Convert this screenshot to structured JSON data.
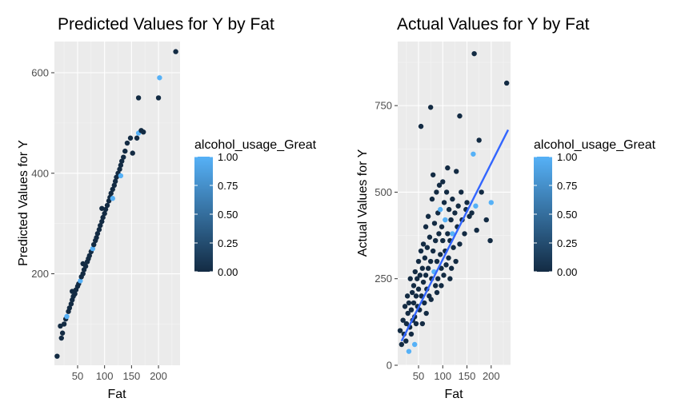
{
  "colors": {
    "panel_bg": "#ebebeb",
    "grid_major": "#ffffff",
    "grid_minor": "#f5f5f5",
    "fit_line": "#3366ff",
    "scale_low": "#132b43",
    "scale_high": "#56b1f7",
    "tick_text": "#4d4d4d"
  },
  "chart_data": [
    {
      "type": "scatter",
      "title": "Predicted Values for Y by Fat",
      "xlabel": "Fat",
      "ylabel": "Predicted Values for Y",
      "xlim": [
        7,
        240
      ],
      "ylim": [
        18,
        662
      ],
      "xticks": [
        50,
        100,
        150,
        200
      ],
      "yticks": [
        200,
        400,
        600
      ],
      "grid": true,
      "legend": {
        "title": "alcohol_usage_Great",
        "position": "right",
        "labels": [
          "1.00",
          "0.75",
          "0.50",
          "0.25",
          "0.00"
        ],
        "values": [
          1.0,
          0.75,
          0.5,
          0.25,
          0.0
        ]
      },
      "points": [
        {
          "x": 12,
          "y": 36,
          "c": 0
        },
        {
          "x": 20,
          "y": 72,
          "c": 0
        },
        {
          "x": 22,
          "y": 82,
          "c": 0
        },
        {
          "x": 18,
          "y": 96,
          "c": 0
        },
        {
          "x": 25,
          "y": 100,
          "c": 0
        },
        {
          "x": 28,
          "y": 110,
          "c": 0
        },
        {
          "x": 30,
          "y": 115,
          "c": 1
        },
        {
          "x": 33,
          "y": 125,
          "c": 0
        },
        {
          "x": 35,
          "y": 132,
          "c": 0
        },
        {
          "x": 38,
          "y": 140,
          "c": 0
        },
        {
          "x": 40,
          "y": 148,
          "c": 0
        },
        {
          "x": 42,
          "y": 155,
          "c": 0
        },
        {
          "x": 45,
          "y": 160,
          "c": 0
        },
        {
          "x": 47,
          "y": 168,
          "c": 0
        },
        {
          "x": 50,
          "y": 175,
          "c": 0
        },
        {
          "x": 52,
          "y": 180,
          "c": 0
        },
        {
          "x": 55,
          "y": 186,
          "c": 1
        },
        {
          "x": 57,
          "y": 194,
          "c": 0
        },
        {
          "x": 60,
          "y": 200,
          "c": 0
        },
        {
          "x": 62,
          "y": 208,
          "c": 0
        },
        {
          "x": 65,
          "y": 215,
          "c": 0
        },
        {
          "x": 68,
          "y": 224,
          "c": 0
        },
        {
          "x": 70,
          "y": 230,
          "c": 0
        },
        {
          "x": 72,
          "y": 236,
          "c": 0
        },
        {
          "x": 75,
          "y": 244,
          "c": 0
        },
        {
          "x": 78,
          "y": 250,
          "c": 1
        },
        {
          "x": 80,
          "y": 258,
          "c": 0
        },
        {
          "x": 83,
          "y": 266,
          "c": 0
        },
        {
          "x": 85,
          "y": 272,
          "c": 0
        },
        {
          "x": 87,
          "y": 280,
          "c": 0
        },
        {
          "x": 90,
          "y": 288,
          "c": 0
        },
        {
          "x": 92,
          "y": 296,
          "c": 0
        },
        {
          "x": 95,
          "y": 304,
          "c": 0
        },
        {
          "x": 97,
          "y": 312,
          "c": 0
        },
        {
          "x": 100,
          "y": 320,
          "c": 0
        },
        {
          "x": 102,
          "y": 328,
          "c": 0
        },
        {
          "x": 105,
          "y": 336,
          "c": 0
        },
        {
          "x": 108,
          "y": 345,
          "c": 0
        },
        {
          "x": 110,
          "y": 352,
          "c": 0
        },
        {
          "x": 115,
          "y": 350,
          "c": 1
        },
        {
          "x": 112,
          "y": 360,
          "c": 0
        },
        {
          "x": 115,
          "y": 368,
          "c": 0
        },
        {
          "x": 118,
          "y": 376,
          "c": 0
        },
        {
          "x": 120,
          "y": 384,
          "c": 0
        },
        {
          "x": 122,
          "y": 392,
          "c": 0
        },
        {
          "x": 125,
          "y": 400,
          "c": 0
        },
        {
          "x": 128,
          "y": 408,
          "c": 0
        },
        {
          "x": 130,
          "y": 416,
          "c": 0
        },
        {
          "x": 132,
          "y": 424,
          "c": 0
        },
        {
          "x": 135,
          "y": 432,
          "c": 0
        },
        {
          "x": 138,
          "y": 444,
          "c": 0
        },
        {
          "x": 142,
          "y": 460,
          "c": 0
        },
        {
          "x": 148,
          "y": 470,
          "c": 0
        },
        {
          "x": 152,
          "y": 440,
          "c": 0
        },
        {
          "x": 160,
          "y": 470,
          "c": 0
        },
        {
          "x": 163,
          "y": 480,
          "c": 1
        },
        {
          "x": 168,
          "y": 485,
          "c": 0
        },
        {
          "x": 172,
          "y": 482,
          "c": 0
        },
        {
          "x": 163,
          "y": 550,
          "c": 0
        },
        {
          "x": 202,
          "y": 590,
          "c": 1
        },
        {
          "x": 200,
          "y": 550,
          "c": 0
        },
        {
          "x": 232,
          "y": 642,
          "c": 0
        },
        {
          "x": 130,
          "y": 395,
          "c": 1
        },
        {
          "x": 95,
          "y": 330,
          "c": 0
        },
        {
          "x": 60,
          "y": 220,
          "c": 0
        },
        {
          "x": 40,
          "y": 165,
          "c": 0
        }
      ]
    },
    {
      "type": "scatter",
      "title": "Actual Values for Y by Fat",
      "xlabel": "Fat",
      "ylabel": "Actual Values for Y",
      "xlim": [
        7,
        240
      ],
      "ylim": [
        0,
        935
      ],
      "xticks": [
        50,
        100,
        150,
        200
      ],
      "yticks": [
        0,
        250,
        500,
        750
      ],
      "grid": true,
      "fit_line": {
        "x": [
          15,
          235
        ],
        "y": [
          70,
          680
        ]
      },
      "legend": {
        "title": "alcohol_usage_Great",
        "position": "right",
        "labels": [
          "1.00",
          "0.75",
          "0.50",
          "0.25",
          "0.00"
        ],
        "values": [
          1.0,
          0.75,
          0.5,
          0.25,
          0.0
        ]
      },
      "points": [
        {
          "x": 12,
          "y": 100,
          "c": 0
        },
        {
          "x": 15,
          "y": 60,
          "c": 0
        },
        {
          "x": 18,
          "y": 130,
          "c": 0
        },
        {
          "x": 20,
          "y": 90,
          "c": 0
        },
        {
          "x": 22,
          "y": 170,
          "c": 0
        },
        {
          "x": 24,
          "y": 70,
          "c": 0
        },
        {
          "x": 25,
          "y": 120,
          "c": 0
        },
        {
          "x": 27,
          "y": 200,
          "c": 0
        },
        {
          "x": 28,
          "y": 150,
          "c": 0
        },
        {
          "x": 30,
          "y": 40,
          "c": 1
        },
        {
          "x": 30,
          "y": 180,
          "c": 0
        },
        {
          "x": 32,
          "y": 110,
          "c": 0
        },
        {
          "x": 33,
          "y": 250,
          "c": 0
        },
        {
          "x": 35,
          "y": 90,
          "c": 0
        },
        {
          "x": 35,
          "y": 160,
          "c": 0
        },
        {
          "x": 37,
          "y": 210,
          "c": 0
        },
        {
          "x": 38,
          "y": 130,
          "c": 0
        },
        {
          "x": 40,
          "y": 230,
          "c": 0
        },
        {
          "x": 40,
          "y": 180,
          "c": 0
        },
        {
          "x": 42,
          "y": 140,
          "c": 0
        },
        {
          "x": 43,
          "y": 270,
          "c": 0
        },
        {
          "x": 45,
          "y": 200,
          "c": 0
        },
        {
          "x": 45,
          "y": 120,
          "c": 0
        },
        {
          "x": 47,
          "y": 250,
          "c": 0
        },
        {
          "x": 48,
          "y": 170,
          "c": 0
        },
        {
          "x": 50,
          "y": 300,
          "c": 0
        },
        {
          "x": 50,
          "y": 220,
          "c": 0
        },
        {
          "x": 52,
          "y": 160,
          "c": 0
        },
        {
          "x": 53,
          "y": 260,
          "c": 0
        },
        {
          "x": 55,
          "y": 690,
          "c": 0
        },
        {
          "x": 55,
          "y": 330,
          "c": 0
        },
        {
          "x": 56,
          "y": 200,
          "c": 0
        },
        {
          "x": 58,
          "y": 280,
          "c": 0
        },
        {
          "x": 60,
          "y": 240,
          "c": 0
        },
        {
          "x": 60,
          "y": 350,
          "c": 0
        },
        {
          "x": 62,
          "y": 180,
          "c": 0
        },
        {
          "x": 63,
          "y": 310,
          "c": 0
        },
        {
          "x": 65,
          "y": 260,
          "c": 0
        },
        {
          "x": 65,
          "y": 400,
          "c": 0
        },
        {
          "x": 67,
          "y": 220,
          "c": 0
        },
        {
          "x": 68,
          "y": 340,
          "c": 0
        },
        {
          "x": 70,
          "y": 280,
          "c": 0
        },
        {
          "x": 70,
          "y": 430,
          "c": 0
        },
        {
          "x": 72,
          "y": 200,
          "c": 0
        },
        {
          "x": 73,
          "y": 370,
          "c": 0
        },
        {
          "x": 75,
          "y": 745,
          "c": 0
        },
        {
          "x": 75,
          "y": 300,
          "c": 0
        },
        {
          "x": 77,
          "y": 250,
          "c": 0
        },
        {
          "x": 78,
          "y": 480,
          "c": 0
        },
        {
          "x": 80,
          "y": 330,
          "c": 0
        },
        {
          "x": 80,
          "y": 550,
          "c": 0
        },
        {
          "x": 82,
          "y": 270,
          "c": 1
        },
        {
          "x": 83,
          "y": 410,
          "c": 0
        },
        {
          "x": 85,
          "y": 360,
          "c": 0
        },
        {
          "x": 85,
          "y": 230,
          "c": 0
        },
        {
          "x": 87,
          "y": 500,
          "c": 0
        },
        {
          "x": 88,
          "y": 300,
          "c": 0
        },
        {
          "x": 90,
          "y": 440,
          "c": 0
        },
        {
          "x": 90,
          "y": 250,
          "c": 0
        },
        {
          "x": 92,
          "y": 380,
          "c": 0
        },
        {
          "x": 93,
          "y": 520,
          "c": 0
        },
        {
          "x": 95,
          "y": 320,
          "c": 0
        },
        {
          "x": 95,
          "y": 450,
          "c": 1
        },
        {
          "x": 97,
          "y": 280,
          "c": 0
        },
        {
          "x": 98,
          "y": 400,
          "c": 0
        },
        {
          "x": 100,
          "y": 360,
          "c": 0
        },
        {
          "x": 100,
          "y": 530,
          "c": 0
        },
        {
          "x": 102,
          "y": 260,
          "c": 0
        },
        {
          "x": 103,
          "y": 470,
          "c": 0
        },
        {
          "x": 105,
          "y": 330,
          "c": 0
        },
        {
          "x": 105,
          "y": 420,
          "c": 1
        },
        {
          "x": 107,
          "y": 290,
          "c": 0
        },
        {
          "x": 108,
          "y": 500,
          "c": 0
        },
        {
          "x": 110,
          "y": 380,
          "c": 0
        },
        {
          "x": 110,
          "y": 570,
          "c": 0
        },
        {
          "x": 112,
          "y": 310,
          "c": 0
        },
        {
          "x": 113,
          "y": 450,
          "c": 0
        },
        {
          "x": 115,
          "y": 360,
          "c": 0
        },
        {
          "x": 117,
          "y": 420,
          "c": 0
        },
        {
          "x": 118,
          "y": 280,
          "c": 0
        },
        {
          "x": 120,
          "y": 480,
          "c": 0
        },
        {
          "x": 120,
          "y": 380,
          "c": 1
        },
        {
          "x": 122,
          "y": 340,
          "c": 0
        },
        {
          "x": 125,
          "y": 440,
          "c": 0
        },
        {
          "x": 127,
          "y": 300,
          "c": 0
        },
        {
          "x": 128,
          "y": 560,
          "c": 0
        },
        {
          "x": 130,
          "y": 400,
          "c": 0
        },
        {
          "x": 132,
          "y": 460,
          "c": 0
        },
        {
          "x": 135,
          "y": 720,
          "c": 0
        },
        {
          "x": 135,
          "y": 350,
          "c": 0
        },
        {
          "x": 138,
          "y": 500,
          "c": 0
        },
        {
          "x": 140,
          "y": 420,
          "c": 0
        },
        {
          "x": 145,
          "y": 380,
          "c": 0
        },
        {
          "x": 148,
          "y": 450,
          "c": 0
        },
        {
          "x": 150,
          "y": 470,
          "c": 0
        },
        {
          "x": 155,
          "y": 430,
          "c": 0
        },
        {
          "x": 160,
          "y": 440,
          "c": 0
        },
        {
          "x": 163,
          "y": 610,
          "c": 1
        },
        {
          "x": 165,
          "y": 900,
          "c": 0
        },
        {
          "x": 168,
          "y": 460,
          "c": 1
        },
        {
          "x": 170,
          "y": 390,
          "c": 0
        },
        {
          "x": 175,
          "y": 650,
          "c": 0
        },
        {
          "x": 180,
          "y": 500,
          "c": 0
        },
        {
          "x": 190,
          "y": 420,
          "c": 0
        },
        {
          "x": 198,
          "y": 360,
          "c": 0
        },
        {
          "x": 200,
          "y": 470,
          "c": 1
        },
        {
          "x": 232,
          "y": 815,
          "c": 0
        },
        {
          "x": 42,
          "y": 60,
          "c": 1
        },
        {
          "x": 58,
          "y": 120,
          "c": 0
        },
        {
          "x": 66,
          "y": 150,
          "c": 0
        },
        {
          "x": 76,
          "y": 190,
          "c": 0
        },
        {
          "x": 88,
          "y": 210,
          "c": 0
        },
        {
          "x": 97,
          "y": 230,
          "c": 0
        },
        {
          "x": 115,
          "y": 250,
          "c": 0
        }
      ]
    }
  ]
}
